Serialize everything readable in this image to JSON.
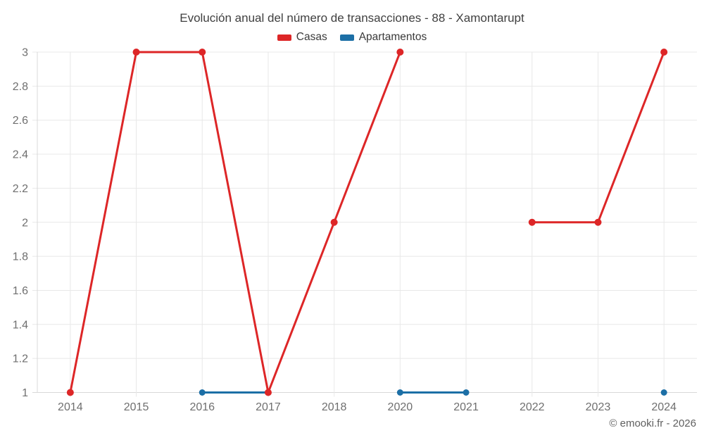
{
  "chart_data": {
    "type": "line",
    "title": "Evolución anual del número de transacciones - 88 - Xamontarupt",
    "categories": [
      "2014",
      "2015",
      "2016",
      "2017",
      "2018",
      "2020",
      "2021",
      "2022",
      "2023",
      "2024"
    ],
    "series": [
      {
        "name": "Casas",
        "color": "#dd2627",
        "values": [
          1,
          3,
          3,
          1,
          2,
          3,
          null,
          2,
          2,
          3
        ]
      },
      {
        "name": "Apartamentos",
        "color": "#1c6fa6",
        "values": [
          null,
          null,
          1,
          1,
          null,
          1,
          1,
          null,
          null,
          1
        ]
      }
    ],
    "xlabel": "",
    "ylabel": "",
    "ylim": [
      1,
      3
    ],
    "yticks": [
      1,
      1.2,
      1.4,
      1.6,
      1.8,
      2,
      2.2,
      2.4,
      2.6,
      2.8,
      3
    ],
    "grid": true,
    "legend_position": "top",
    "colors": {
      "grid": "#e8e8e8",
      "axis": "#d9d9d9",
      "tick_label": "#6f6f6f",
      "title": "#3f3f3f",
      "legend_label": "#3a3a3a",
      "footer": "#606060",
      "background": "#ffffff"
    }
  },
  "footer": {
    "credit": "© emooki.fr - 2026"
  }
}
